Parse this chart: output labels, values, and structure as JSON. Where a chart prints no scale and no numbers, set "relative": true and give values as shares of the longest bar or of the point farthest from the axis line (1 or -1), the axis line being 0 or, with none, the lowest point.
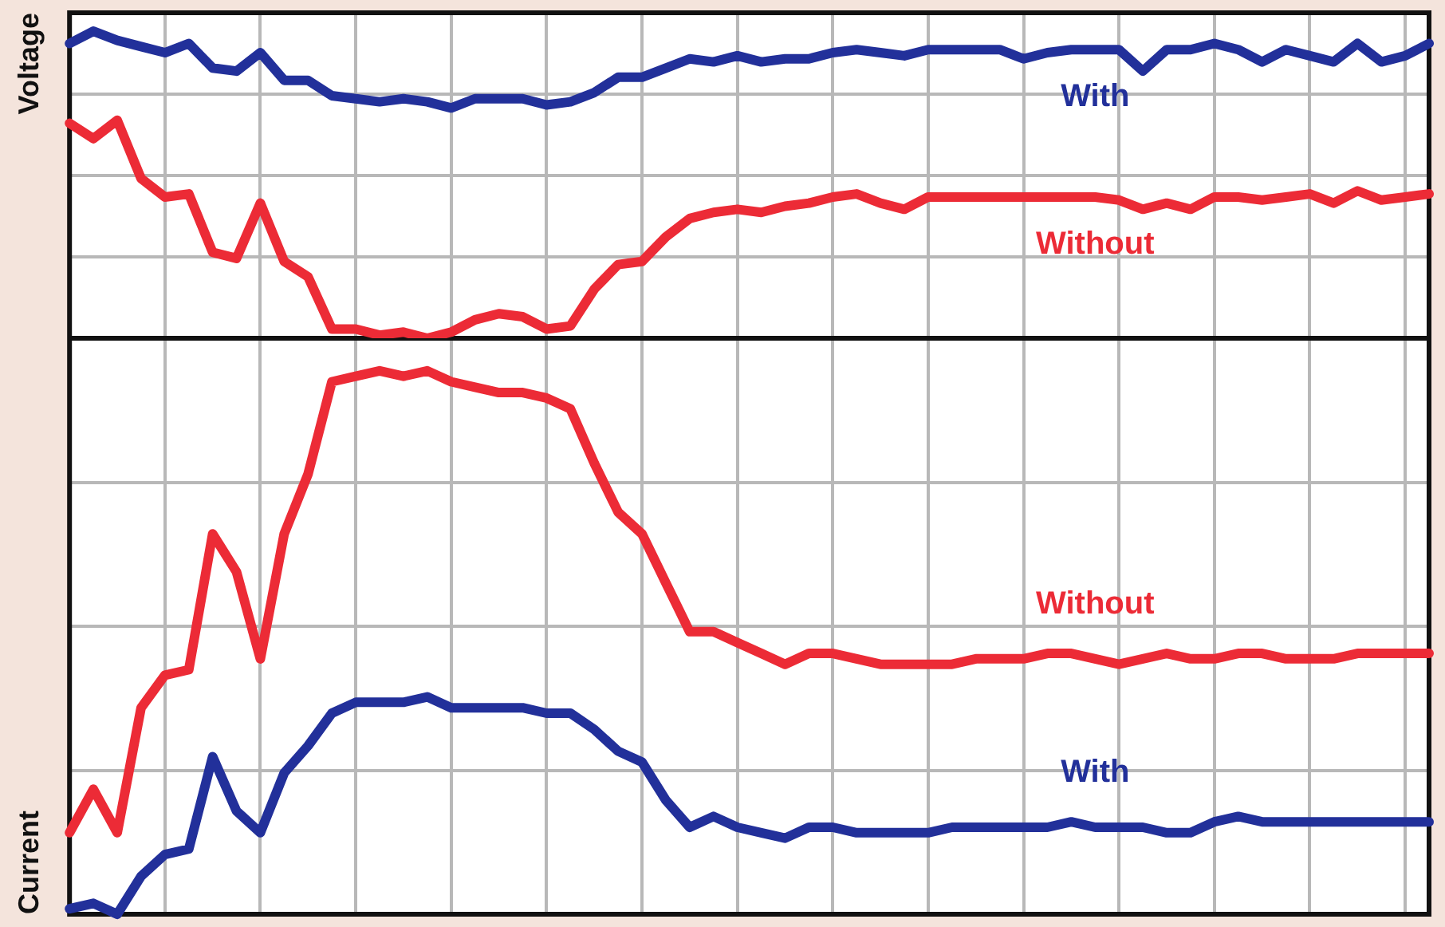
{
  "chart_data": [
    {
      "type": "line",
      "ylabel": "Voltage",
      "relative": true,
      "legend": false,
      "grid": true,
      "tick_labels": false,
      "marker": "none",
      "line_style": "solid",
      "categories": [
        null,
        null,
        null,
        null,
        null,
        null,
        null,
        null,
        null,
        null,
        null,
        null,
        null,
        null,
        null,
        null,
        null,
        null,
        null,
        null,
        null,
        null,
        null,
        null,
        null,
        null,
        null,
        null,
        null,
        null,
        null,
        null,
        null,
        null,
        null,
        null,
        null,
        null,
        null,
        null,
        null,
        null,
        null,
        null,
        null,
        null,
        null,
        null,
        null,
        null,
        null,
        null,
        null,
        null,
        null,
        null,
        null,
        null
      ],
      "series": [
        {
          "name": "With",
          "color": "#22309a",
          "values": [
            0.96,
            1.0,
            0.97,
            0.95,
            0.93,
            0.96,
            0.88,
            0.87,
            0.93,
            0.84,
            0.84,
            0.79,
            0.78,
            0.77,
            0.78,
            0.77,
            0.75,
            0.78,
            0.78,
            0.78,
            0.76,
            0.77,
            0.8,
            0.85,
            0.85,
            0.88,
            0.91,
            0.9,
            0.92,
            0.9,
            0.91,
            0.91,
            0.93,
            0.94,
            0.93,
            0.92,
            0.94,
            0.94,
            0.94,
            0.94,
            0.91,
            0.93,
            0.94,
            0.94,
            0.94,
            0.87,
            0.94,
            0.94,
            0.96,
            0.94,
            0.9,
            0.94,
            0.92,
            0.9,
            0.96,
            0.9,
            0.92,
            0.96
          ]
        },
        {
          "name": "Without",
          "color": "#ec2b36",
          "values": [
            0.7,
            0.65,
            0.71,
            0.52,
            0.46,
            0.47,
            0.28,
            0.26,
            0.44,
            0.25,
            0.2,
            0.03,
            0.03,
            0.01,
            0.02,
            0.0,
            0.02,
            0.06,
            0.08,
            0.07,
            0.03,
            0.04,
            0.16,
            0.24,
            0.25,
            0.33,
            0.39,
            0.41,
            0.42,
            0.41,
            0.43,
            0.44,
            0.46,
            0.47,
            0.44,
            0.42,
            0.46,
            0.46,
            0.46,
            0.46,
            0.46,
            0.46,
            0.46,
            0.46,
            0.45,
            0.42,
            0.44,
            0.42,
            0.46,
            0.46,
            0.45,
            0.46,
            0.47,
            0.44,
            0.48,
            0.45,
            0.46,
            0.47
          ]
        }
      ]
    },
    {
      "type": "line",
      "ylabel": "Current",
      "relative": true,
      "legend": false,
      "grid": true,
      "tick_labels": false,
      "marker": "none",
      "line_style": "solid",
      "categories": [
        null,
        null,
        null,
        null,
        null,
        null,
        null,
        null,
        null,
        null,
        null,
        null,
        null,
        null,
        null,
        null,
        null,
        null,
        null,
        null,
        null,
        null,
        null,
        null,
        null,
        null,
        null,
        null,
        null,
        null,
        null,
        null,
        null,
        null,
        null,
        null,
        null,
        null,
        null,
        null,
        null,
        null,
        null,
        null,
        null,
        null,
        null,
        null,
        null,
        null,
        null,
        null,
        null,
        null,
        null,
        null,
        null,
        null
      ],
      "series": [
        {
          "name": "Without",
          "color": "#ec2b36",
          "values": [
            0.15,
            0.23,
            0.15,
            0.38,
            0.44,
            0.45,
            0.7,
            0.63,
            0.47,
            0.7,
            0.81,
            0.98,
            0.99,
            1.0,
            0.99,
            1.0,
            0.98,
            0.97,
            0.96,
            0.96,
            0.95,
            0.93,
            0.83,
            0.74,
            0.7,
            0.61,
            0.52,
            0.52,
            0.5,
            0.48,
            0.46,
            0.48,
            0.48,
            0.47,
            0.46,
            0.46,
            0.46,
            0.46,
            0.47,
            0.47,
            0.47,
            0.48,
            0.48,
            0.47,
            0.46,
            0.47,
            0.48,
            0.47,
            0.47,
            0.48,
            0.48,
            0.47,
            0.47,
            0.47,
            0.48,
            0.48,
            0.48,
            0.48
          ]
        },
        {
          "name": "With",
          "color": "#22309a",
          "values": [
            0.01,
            0.02,
            0.0,
            0.07,
            0.11,
            0.12,
            0.29,
            0.19,
            0.15,
            0.26,
            0.31,
            0.37,
            0.39,
            0.39,
            0.39,
            0.4,
            0.38,
            0.38,
            0.38,
            0.38,
            0.37,
            0.37,
            0.34,
            0.3,
            0.28,
            0.21,
            0.16,
            0.18,
            0.16,
            0.15,
            0.14,
            0.16,
            0.16,
            0.15,
            0.15,
            0.15,
            0.15,
            0.16,
            0.16,
            0.16,
            0.16,
            0.16,
            0.17,
            0.16,
            0.16,
            0.16,
            0.15,
            0.15,
            0.17,
            0.18,
            0.17,
            0.17,
            0.17,
            0.17,
            0.17,
            0.17,
            0.17,
            0.17
          ]
        }
      ]
    }
  ]
}
